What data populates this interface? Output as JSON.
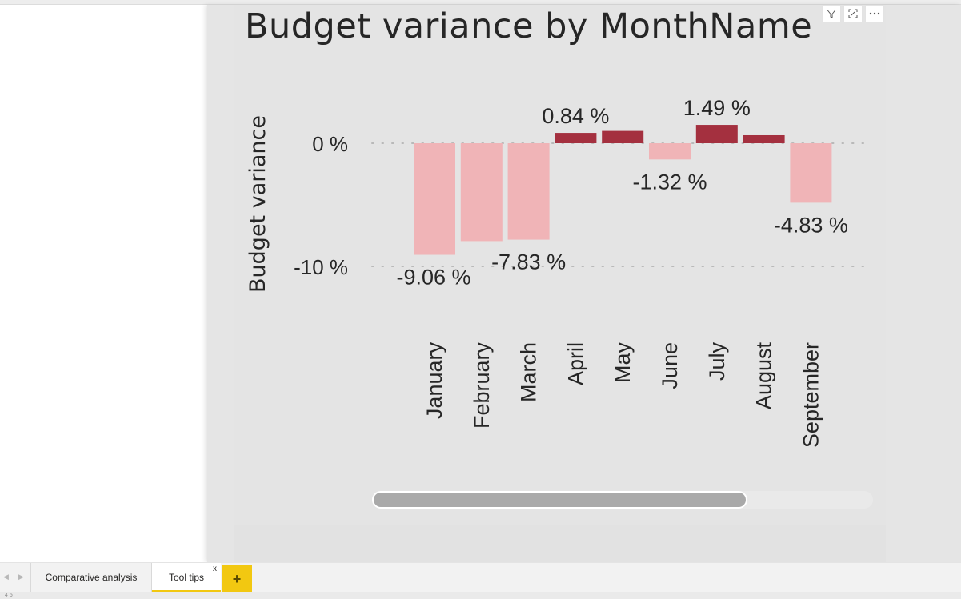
{
  "report": {
    "pages": [
      {
        "label": "Comparative analysis",
        "active": false
      },
      {
        "label": "Tool tips",
        "active": true
      }
    ],
    "close_glyph": "x",
    "add_page_glyph": "+",
    "nav_prev_glyph": "◀",
    "nav_next_glyph": "▶",
    "status_text": "4 5"
  },
  "visual_header": {
    "icons": [
      "filter-icon",
      "focus-mode-icon",
      "more-options-icon"
    ]
  },
  "colors": {
    "positive": "#a4303f",
    "negative": "#f0b4b7",
    "gridline": "#b9b9b9",
    "text": "#262626",
    "accent": "#f2c811"
  },
  "chart_data": {
    "type": "bar",
    "title": "Budget variance by MonthName",
    "xlabel": "",
    "ylabel": "Budget variance",
    "categories": [
      "January",
      "February",
      "March",
      "April",
      "May",
      "June",
      "July",
      "August",
      "September"
    ],
    "values": [
      -9.06,
      -7.95,
      -7.83,
      0.84,
      1.0,
      -1.32,
      1.49,
      0.65,
      -4.83
    ],
    "data_labels": [
      "-9.06 %",
      "",
      "-7.83 %",
      "0.84 %",
      "",
      "-1.32 %",
      "1.49 %",
      "",
      "-4.83 %"
    ],
    "y_ticks": [
      0,
      -10
    ],
    "y_tick_labels": [
      "0 %",
      "-10 %"
    ],
    "ylim": [
      -10,
      1.5
    ],
    "grid": true,
    "legend": "none"
  }
}
